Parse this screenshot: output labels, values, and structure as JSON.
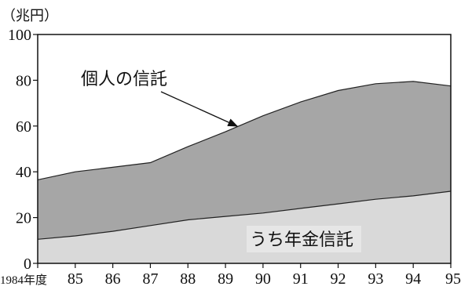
{
  "chart_data": {
    "type": "area",
    "title": "",
    "ylabel": "（兆円）",
    "xlabel": "",
    "ylim": [
      0,
      100
    ],
    "yticks": [
      0,
      20,
      40,
      60,
      80,
      100
    ],
    "x": [
      "1984年度",
      "85",
      "86",
      "87",
      "88",
      "89",
      "90",
      "91",
      "92",
      "93",
      "94",
      "95"
    ],
    "series": [
      {
        "name": "個人の信託",
        "values": [
          36.5,
          40,
          42,
          44,
          51,
          57.5,
          64.5,
          70.5,
          75.5,
          78.5,
          79.5,
          77.5
        ],
        "color": "#a6a6a6"
      },
      {
        "name": "うち年金信託",
        "values": [
          10.5,
          12,
          14,
          16.5,
          19,
          20.5,
          22,
          24,
          26,
          28,
          29.5,
          31.5
        ],
        "color": "#d9d9d9"
      }
    ],
    "annotations": [
      {
        "text": "個人の信託",
        "points_to": "series-0"
      },
      {
        "text": "うち年金信託",
        "boxed": true
      }
    ],
    "grid": false
  }
}
